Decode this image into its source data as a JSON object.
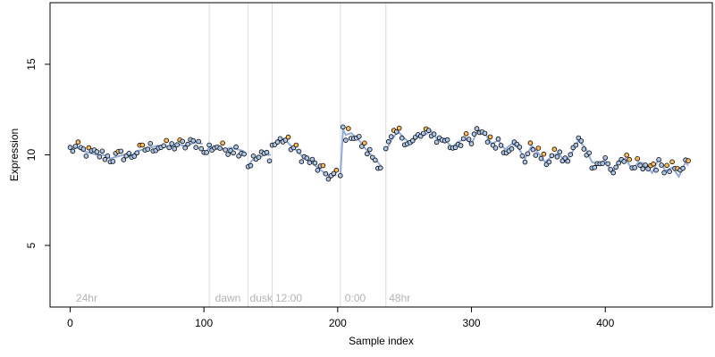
{
  "chart_data": {
    "type": "scatter",
    "title": "",
    "xlabel": "Sample index",
    "ylabel": "Expression",
    "xlim": [
      -15,
      480
    ],
    "ylim": [
      1.6,
      18.4
    ],
    "x_ticks": [
      0,
      100,
      200,
      300,
      400
    ],
    "y_ticks": [
      5,
      10,
      15
    ],
    "grid": false,
    "legend": "none",
    "colors": {
      "marker_edge": "#000000",
      "marker_fill_low": "#aec7e8",
      "marker_fill_high": "#ffbb55",
      "trend_line": "#6f8fcf",
      "period_line": "#dcdcdc",
      "period_text": "#b3b3b3"
    },
    "period_boundaries": [
      0,
      104,
      133,
      151,
      202,
      236
    ],
    "period_labels": [
      {
        "x": 3,
        "text": "24hr"
      },
      {
        "x": 107,
        "text": "dawn"
      },
      {
        "x": 133,
        "text": "dusk"
      },
      {
        "x": 152,
        "text": "12:00"
      },
      {
        "x": 204,
        "text": "0:00"
      },
      {
        "x": 237,
        "text": "48hr"
      }
    ],
    "segments": [
      {
        "x": [
          0,
          5,
          10,
          15,
          20,
          25,
          30,
          35,
          40,
          45,
          50,
          55,
          60,
          65,
          70,
          75,
          80,
          85,
          90,
          95,
          99
        ],
        "y": [
          10.3,
          10.4,
          10.2,
          10.1,
          10.0,
          10.0,
          9.8,
          9.9,
          10.0,
          9.9,
          10.2,
          10.3,
          10.4,
          10.5,
          10.5,
          10.4,
          10.6,
          10.5,
          10.6,
          10.7,
          10.6
        ]
      },
      {
        "x": [
          100,
          104,
          110,
          115,
          120,
          125,
          130
        ],
        "y": [
          10.0,
          10.4,
          10.5,
          10.3,
          10.4,
          10.3,
          10.2
        ]
      },
      {
        "x": [
          133,
          136,
          140,
          145,
          150
        ],
        "y": [
          9.4,
          9.7,
          9.8,
          10.0,
          10.0
        ]
      },
      {
        "x": [
          151,
          155,
          160,
          165,
          170,
          175,
          180,
          185,
          190,
          195,
          199
        ],
        "y": [
          10.5,
          10.7,
          10.9,
          10.5,
          10.2,
          9.8,
          9.6,
          9.3,
          9.0,
          8.8,
          8.9
        ]
      },
      {
        "x": [
          202,
          204,
          206,
          210,
          215,
          220,
          225,
          230,
          233
        ],
        "y": [
          8.8,
          11.4,
          11.1,
          11.2,
          10.9,
          10.4,
          10.0,
          9.6,
          9.3
        ]
      },
      {
        "x": [
          236,
          240,
          245,
          250,
          255,
          260,
          265,
          270,
          275,
          280,
          285,
          290,
          295,
          300,
          305,
          310,
          315,
          320,
          325,
          330,
          335,
          340,
          345,
          350,
          355,
          360,
          365,
          370,
          375,
          380,
          385,
          390,
          395,
          400,
          405,
          410,
          415,
          420,
          425,
          430,
          435,
          440,
          445,
          450,
          455,
          460,
          462
        ],
        "y": [
          10.2,
          10.8,
          11.3,
          10.9,
          10.6,
          11.0,
          11.1,
          11.3,
          10.8,
          10.9,
          10.4,
          10.7,
          10.9,
          10.6,
          11.4,
          11.2,
          10.6,
          10.8,
          10.3,
          10.6,
          10.4,
          9.8,
          10.5,
          10.1,
          9.6,
          9.9,
          10.1,
          9.6,
          10.1,
          10.8,
          10.4,
          9.6,
          9.5,
          9.7,
          9.0,
          9.6,
          9.8,
          9.2,
          9.6,
          9.5,
          9.0,
          9.8,
          9.1,
          9.3,
          8.8,
          9.6,
          9.4
        ]
      }
    ],
    "noise_amplitude": 0.35,
    "point_step": 2
  }
}
